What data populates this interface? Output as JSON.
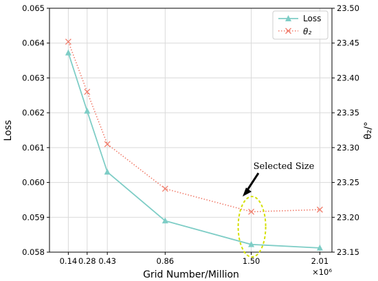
{
  "chart_data": {
    "type": "line",
    "xlabel": "Grid Number/Million",
    "x_multiplier": "×10⁶",
    "x": [
      0.14,
      0.28,
      0.43,
      0.86,
      1.5,
      2.01
    ],
    "x_tick_labels": [
      "0.14",
      "0.28",
      "0.43",
      "0.86",
      "1.50",
      "2.01"
    ],
    "xlim": [
      0.0,
      2.1
    ],
    "ylabel_left": "Loss",
    "ylim_left": [
      0.058,
      0.065
    ],
    "yticks_left": [
      "0.058",
      "0.059",
      "0.060",
      "0.061",
      "0.062",
      "0.063",
      "0.064",
      "0.065"
    ],
    "ylabel_right": "θ₂/°",
    "ylim_right": [
      23.15,
      23.5
    ],
    "yticks_right": [
      "23.15",
      "23.20",
      "23.25",
      "23.30",
      "23.35",
      "23.40",
      "23.45",
      "23.50"
    ],
    "grid": true,
    "legend_position": "top-right",
    "series": [
      {
        "name": "Loss",
        "axis": "left",
        "values": [
          0.06372,
          0.06205,
          0.0603,
          0.0589,
          0.05822,
          0.05812
        ],
        "color": "#7ecdc6",
        "marker": "triangle",
        "line_style": "solid"
      },
      {
        "name": "θ₂",
        "axis": "right",
        "values": [
          23.452,
          23.38,
          23.305,
          23.241,
          23.208,
          23.211
        ],
        "color": "#f07b6a",
        "marker": "x",
        "line_style": "dotted"
      }
    ],
    "annotation": {
      "text": "Selected Size",
      "target_x": 1.5,
      "highlight_color": "#d4e000"
    }
  }
}
